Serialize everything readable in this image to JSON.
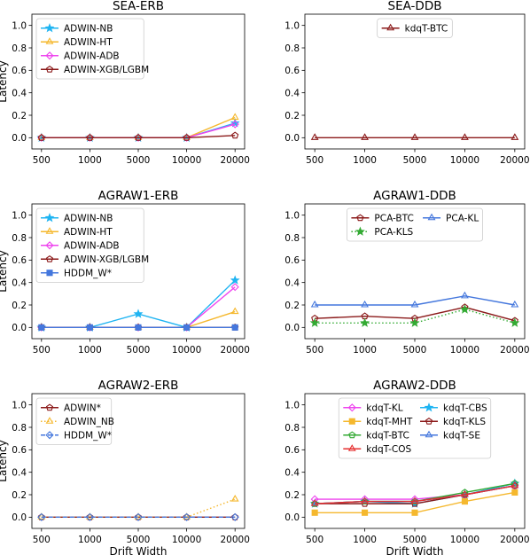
{
  "chart_data": [
    {
      "type": "line",
      "title": "SEA-ERB",
      "ylabel": "Latency",
      "xlabel": "",
      "categories": [
        "500",
        "1000",
        "5000",
        "10000",
        "20000"
      ],
      "ylim": [
        -0.1,
        1.1
      ],
      "yticks": [
        "0.0",
        "0.2",
        "0.4",
        "0.6",
        "0.8",
        "1.0"
      ],
      "legend": {
        "placement": "top-left",
        "columns": 1
      },
      "series": [
        {
          "name": "ADWIN-NB",
          "color": "#1fb4f2",
          "marker": "star",
          "dash": "solid",
          "values": [
            0,
            0,
            0,
            0,
            0.13
          ]
        },
        {
          "name": "ADWIN-HT",
          "color": "#f5b82e",
          "marker": "triangle",
          "dash": "solid",
          "values": [
            0,
            0,
            0,
            0,
            0.18
          ]
        },
        {
          "name": "ADWIN-ADB",
          "color": "#ee44ee",
          "marker": "diamond",
          "dash": "solid",
          "values": [
            0,
            0,
            0,
            0,
            0.12
          ]
        },
        {
          "name": "ADWIN-XGB/LGBM",
          "color": "#8b1a1a",
          "marker": "pentagon",
          "dash": "solid",
          "values": [
            0,
            0,
            0,
            0,
            0.02
          ]
        }
      ]
    },
    {
      "type": "line",
      "title": "SEA-DDB",
      "ylabel": "",
      "xlabel": "",
      "categories": [
        "500",
        "1000",
        "5000",
        "10000",
        "20000"
      ],
      "ylim": [
        -0.1,
        1.1
      ],
      "yticks": [
        "0.0",
        "0.2",
        "0.4",
        "0.6",
        "0.8",
        "1.0"
      ],
      "legend": {
        "placement": "top-center",
        "columns": 1
      },
      "series": [
        {
          "name": "kdqT-BTC",
          "color": "#8b1a1a",
          "marker": "triangle",
          "dash": "solid",
          "values": [
            0,
            0,
            0,
            0,
            0
          ]
        }
      ]
    },
    {
      "type": "line",
      "title": "AGRAW1-ERB",
      "ylabel": "Latency",
      "xlabel": "",
      "categories": [
        "500",
        "1000",
        "5000",
        "10000",
        "20000"
      ],
      "ylim": [
        -0.1,
        1.1
      ],
      "yticks": [
        "0.0",
        "0.2",
        "0.4",
        "0.6",
        "0.8",
        "1.0"
      ],
      "legend": {
        "placement": "top-left",
        "columns": 1
      },
      "series": [
        {
          "name": "ADWIN-NB",
          "color": "#1fb4f2",
          "marker": "star",
          "dash": "solid",
          "values": [
            0,
            0,
            0.12,
            0,
            0.42
          ]
        },
        {
          "name": "ADWIN-HT",
          "color": "#f5b82e",
          "marker": "triangle",
          "dash": "solid",
          "values": [
            0,
            0,
            0,
            0,
            0.14
          ]
        },
        {
          "name": "ADWIN-ADB",
          "color": "#ee44ee",
          "marker": "diamond",
          "dash": "solid",
          "values": [
            0,
            0,
            0,
            0,
            0.36
          ]
        },
        {
          "name": "ADWIN-XGB/LGBM",
          "color": "#8b1a1a",
          "marker": "pentagon",
          "dash": "solid",
          "values": [
            0,
            0,
            0,
            0,
            0
          ]
        },
        {
          "name": "HDDM_W*",
          "color": "#4477dd",
          "marker": "square",
          "dash": "solid",
          "values": [
            0,
            0,
            0,
            0,
            0
          ]
        }
      ]
    },
    {
      "type": "line",
      "title": "AGRAW1-DDB",
      "ylabel": "",
      "xlabel": "",
      "categories": [
        "500",
        "1000",
        "5000",
        "10000",
        "20000"
      ],
      "ylim": [
        -0.1,
        1.1
      ],
      "yticks": [
        "0.0",
        "0.2",
        "0.4",
        "0.6",
        "0.8",
        "1.0"
      ],
      "legend": {
        "placement": "top-center",
        "columns": 2
      },
      "series": [
        {
          "name": "PCA-BTC",
          "color": "#8b1a1a",
          "marker": "pentagon",
          "dash": "solid",
          "values": [
            0.08,
            0.1,
            0.08,
            0.18,
            0.06
          ]
        },
        {
          "name": "PCA-KL",
          "color": "#4477dd",
          "marker": "triangle",
          "dash": "solid",
          "values": [
            0.2,
            0.2,
            0.2,
            0.28,
            0.2
          ]
        },
        {
          "name": "PCA-KLS",
          "color": "#33aa33",
          "marker": "star",
          "dash": "dotted",
          "values": [
            0.04,
            0.04,
            0.04,
            0.16,
            0.04
          ]
        }
      ]
    },
    {
      "type": "line",
      "title": "AGRAW2-ERB",
      "ylabel": "Latency",
      "xlabel": "Drift Width",
      "categories": [
        "500",
        "1000",
        "5000",
        "10000",
        "20000"
      ],
      "ylim": [
        -0.1,
        1.1
      ],
      "yticks": [
        "0.0",
        "0.2",
        "0.4",
        "0.6",
        "0.8",
        "1.0"
      ],
      "legend": {
        "placement": "top-left",
        "columns": 1
      },
      "series": [
        {
          "name": "ADWIN*",
          "color": "#8b1a1a",
          "marker": "pentagon",
          "dash": "solid",
          "values": [
            0,
            0,
            0,
            0,
            0
          ]
        },
        {
          "name": "ADWIN_NB",
          "color": "#f5b82e",
          "marker": "triangle",
          "dash": "dotted",
          "values": [
            0,
            0,
            0,
            0,
            0.16
          ]
        },
        {
          "name": "HDDM_W*",
          "color": "#4477dd",
          "marker": "diamond",
          "dash": "dashed",
          "values": [
            0,
            0,
            0,
            0,
            0
          ]
        }
      ]
    },
    {
      "type": "line",
      "title": "AGRAW2-DDB",
      "ylabel": "",
      "xlabel": "Drift Width",
      "categories": [
        "500",
        "1000",
        "5000",
        "10000",
        "20000"
      ],
      "ylim": [
        -0.1,
        1.1
      ],
      "yticks": [
        "0.0",
        "0.2",
        "0.4",
        "0.6",
        "0.8",
        "1.0"
      ],
      "legend": {
        "placement": "top-center",
        "columns": 2
      },
      "series": [
        {
          "name": "kdqT-KL",
          "color": "#ee44ee",
          "marker": "diamond",
          "dash": "solid",
          "values": [
            0.16,
            0.16,
            0.16,
            0.2,
            0.28
          ]
        },
        {
          "name": "kdqT-CBS",
          "color": "#1fb4f2",
          "marker": "star",
          "dash": "solid",
          "values": [
            0.12,
            0.14,
            0.12,
            0.2,
            0.3
          ]
        },
        {
          "name": "kdqT-MHT",
          "color": "#f5b82e",
          "marker": "square",
          "dash": "solid",
          "values": [
            0.04,
            0.04,
            0.04,
            0.14,
            0.22
          ]
        },
        {
          "name": "kdqT-KLS",
          "color": "#8b1a1a",
          "marker": "pentagon",
          "dash": "solid",
          "values": [
            0.12,
            0.12,
            0.12,
            0.2,
            0.28
          ]
        },
        {
          "name": "kdqT-BTC",
          "color": "#33aa33",
          "marker": "pentagon",
          "dash": "solid",
          "values": [
            0.12,
            0.14,
            0.14,
            0.22,
            0.3
          ]
        },
        {
          "name": "kdqT-SE",
          "color": "#4477dd",
          "marker": "triangle",
          "dash": "solid",
          "values": [
            0.12,
            0.14,
            0.14,
            0.2,
            0.28
          ]
        },
        {
          "name": "kdqT-COS",
          "color": "#e63030",
          "marker": "triangle",
          "dash": "solid",
          "values": [
            0.12,
            0.14,
            0.14,
            0.2,
            0.28
          ]
        }
      ]
    }
  ]
}
